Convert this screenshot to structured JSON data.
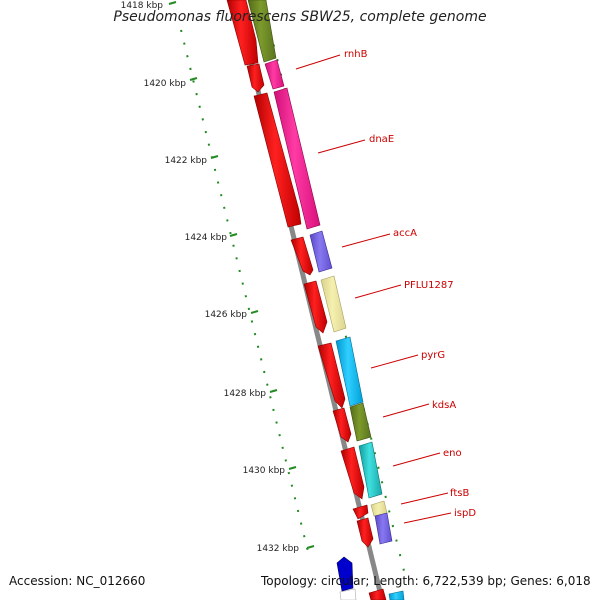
{
  "title": "Pseudomonas fluorescens SBW25, complete genome",
  "accession_text": "Accession: NC_012660",
  "summary_text": "Topology: circular; Length: 6,722,539 bp; Genes: 6,018",
  "scale_labels": [
    "1418 kbp",
    "1420 kbp",
    "1422 kbp",
    "1424 kbp",
    "1426 kbp",
    "1428 kbp",
    "1430 kbp",
    "1432 kbp"
  ],
  "genes": [
    {
      "label": "rnhB",
      "label_color": "#cc0000"
    },
    {
      "label": "dnaE",
      "label_color": "#cc0000"
    },
    {
      "label": "accA",
      "label_color": "#cc0000"
    },
    {
      "label": "PFLU1287",
      "label_color": "#cc0000"
    },
    {
      "label": "pyrG",
      "label_color": "#cc0000"
    },
    {
      "label": "kdsA",
      "label_color": "#cc0000"
    },
    {
      "label": "eno",
      "label_color": "#cc0000"
    },
    {
      "label": "ftsB",
      "label_color": "#cc0000"
    },
    {
      "label": "ispD",
      "label_color": "#cc0000"
    }
  ],
  "colors": {
    "cds_red": "#ee0000",
    "backbone": "#888888",
    "tick_green": "#228b22",
    "cog_olive": "#6b8e23",
    "cog_pink": "#ff1493",
    "cog_purple": "#7b68ee",
    "cog_khaki": "#eee8aa",
    "cog_cyan": "#00bfff",
    "cog_teal": "#20c4c4",
    "blue_feature": "#0000cc"
  }
}
